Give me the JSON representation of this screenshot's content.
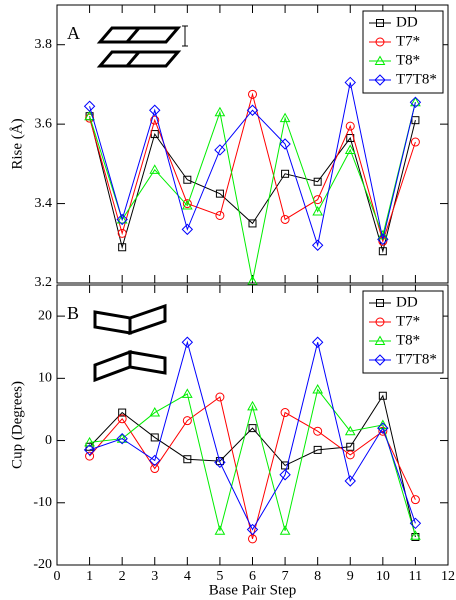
{
  "chart_data": [
    {
      "type": "line",
      "panel_label": "A",
      "ylabel": "Rise (Å)",
      "x": [
        1,
        2,
        3,
        4,
        5,
        6,
        7,
        8,
        9,
        10,
        11
      ],
      "xlim": [
        0,
        12
      ],
      "xticks": [
        0,
        1,
        2,
        3,
        4,
        5,
        6,
        7,
        8,
        9,
        10,
        11,
        12
      ],
      "ylim": [
        3.2,
        3.9
      ],
      "yticks": [
        3.2,
        3.4,
        3.6,
        3.8
      ],
      "legend": "upper right",
      "series": [
        {
          "name": "DD",
          "color": "#000000",
          "marker": "square",
          "values": [
            3.62,
            3.29,
            3.575,
            3.46,
            3.425,
            3.35,
            3.475,
            3.455,
            3.565,
            3.28,
            3.61
          ]
        },
        {
          "name": "T7*",
          "color": "#ff0000",
          "marker": "circle",
          "values": [
            3.615,
            3.325,
            3.61,
            3.4,
            3.37,
            3.675,
            3.36,
            3.41,
            3.595,
            3.305,
            3.555
          ]
        },
        {
          "name": "T8*",
          "color": "#00ee00",
          "marker": "triangle",
          "values": [
            3.62,
            3.36,
            3.485,
            3.395,
            3.63,
            3.205,
            3.615,
            3.38,
            3.535,
            3.32,
            3.655
          ]
        },
        {
          "name": "T7T8*",
          "color": "#0000ff",
          "marker": "diamond",
          "values": [
            3.645,
            3.36,
            3.635,
            3.335,
            3.535,
            3.635,
            3.55,
            3.295,
            3.705,
            3.31,
            3.655
          ]
        }
      ]
    },
    {
      "type": "line",
      "panel_label": "B",
      "ylabel": "Cup (Degrees)",
      "xlabel": "Base Pair Step",
      "x": [
        1,
        2,
        3,
        4,
        5,
        6,
        7,
        8,
        9,
        10,
        11
      ],
      "xlim": [
        0,
        12
      ],
      "xticks": [
        0,
        1,
        2,
        3,
        4,
        5,
        6,
        7,
        8,
        9,
        10,
        11,
        12
      ],
      "ylim": [
        -20,
        25
      ],
      "yticks": [
        -20,
        -10,
        0,
        10,
        20
      ],
      "legend": "upper right",
      "series": [
        {
          "name": "DD",
          "color": "#000000",
          "marker": "square",
          "values": [
            -1,
            4.5,
            0.5,
            -3,
            -3.3,
            2,
            -4,
            -1.5,
            -1,
            7.2,
            -15.5
          ]
        },
        {
          "name": "T7*",
          "color": "#ff0000",
          "marker": "circle",
          "values": [
            -2.5,
            3.5,
            -4.5,
            3.2,
            7,
            -15.8,
            4.5,
            1.5,
            -2.3,
            1.5,
            -9.5
          ]
        },
        {
          "name": "T8*",
          "color": "#00ee00",
          "marker": "triangle",
          "values": [
            -0.3,
            0.3,
            4.5,
            7.5,
            -14.5,
            5.5,
            -14.5,
            8.2,
            1.5,
            2.5,
            -15.3
          ]
        },
        {
          "name": "T7T8*",
          "color": "#0000ff",
          "marker": "diamond",
          "values": [
            -1.5,
            0.3,
            -3.2,
            15.8,
            -3.5,
            -14.3,
            -5.5,
            15.8,
            -6.5,
            2,
            -13.3
          ]
        }
      ]
    }
  ]
}
